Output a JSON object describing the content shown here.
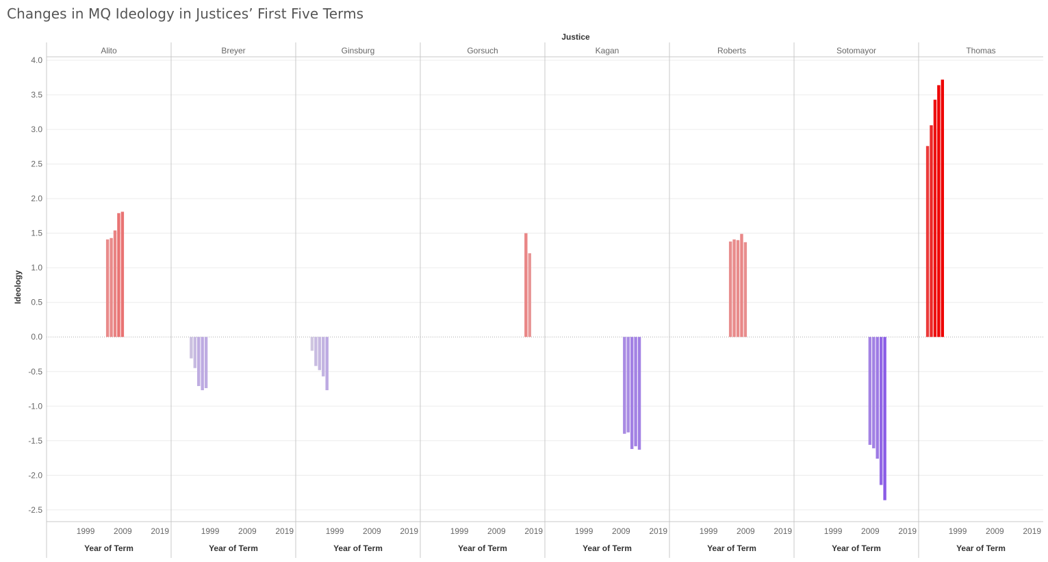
{
  "page": {
    "title": "Changes in MQ Ideology in Justices’ First Five Terms"
  },
  "chart_data": {
    "type": "bar",
    "title": "Changes in MQ Ideology in Justices’ First Five Terms",
    "facet_header": "Justice",
    "ylabel": "Ideology",
    "xlabel": "Year of Term",
    "ylim": [
      -2.65,
      4.05
    ],
    "xlim": [
      1988.5,
      2022
    ],
    "y_ticks": [
      "4.0",
      "3.5",
      "3.0",
      "2.5",
      "2.0",
      "1.5",
      "1.0",
      "0.5",
      "0.0",
      "-0.5",
      "-1.0",
      "-1.5",
      "-2.0",
      "-2.5"
    ],
    "y_tick_values": [
      4.0,
      3.5,
      3.0,
      2.5,
      2.0,
      1.5,
      1.0,
      0.5,
      0.0,
      -0.5,
      -1.0,
      -1.5,
      -2.0,
      -2.5
    ],
    "x_ticks": [
      "1999",
      "2009",
      "2019"
    ],
    "x_tick_values": [
      1999,
      2009,
      2019
    ],
    "zero_line": true,
    "grid": true,
    "color_scale": {
      "neg_max": "#8a5ce6",
      "neg_light": "#cfc6e0",
      "pos_light": "#e89898",
      "pos_max": "#ee0000"
    },
    "panels": [
      {
        "justice": "Alito",
        "years": [
          2005,
          2006,
          2007,
          2008,
          2009
        ],
        "values": [
          1.41,
          1.43,
          1.54,
          1.79,
          1.81
        ]
      },
      {
        "justice": "Breyer",
        "years": [
          1994,
          1995,
          1996,
          1997,
          1998
        ],
        "values": [
          -0.31,
          -0.45,
          -0.71,
          -0.77,
          -0.74
        ]
      },
      {
        "justice": "Ginsburg",
        "years": [
          1993,
          1994,
          1995,
          1996,
          1997
        ],
        "values": [
          -0.2,
          -0.42,
          -0.48,
          -0.57,
          -0.77
        ]
      },
      {
        "justice": "Gorsuch",
        "years": [
          2017,
          2018
        ],
        "values": [
          1.5,
          1.21
        ]
      },
      {
        "justice": "Kagan",
        "years": [
          2010,
          2011,
          2012,
          2013,
          2014
        ],
        "values": [
          -1.4,
          -1.38,
          -1.62,
          -1.58,
          -1.63
        ]
      },
      {
        "justice": "Roberts",
        "years": [
          2005,
          2006,
          2007,
          2008,
          2009
        ],
        "values": [
          1.38,
          1.41,
          1.4,
          1.49,
          1.37
        ]
      },
      {
        "justice": "Sotomayor",
        "years": [
          2009,
          2010,
          2011,
          2012,
          2013
        ],
        "values": [
          -1.56,
          -1.61,
          -1.76,
          -2.14,
          -2.36
        ]
      },
      {
        "justice": "Thomas",
        "years": [
          1991,
          1992,
          1993,
          1994,
          1995
        ],
        "values": [
          2.76,
          3.06,
          3.43,
          3.64,
          3.72
        ]
      }
    ]
  }
}
